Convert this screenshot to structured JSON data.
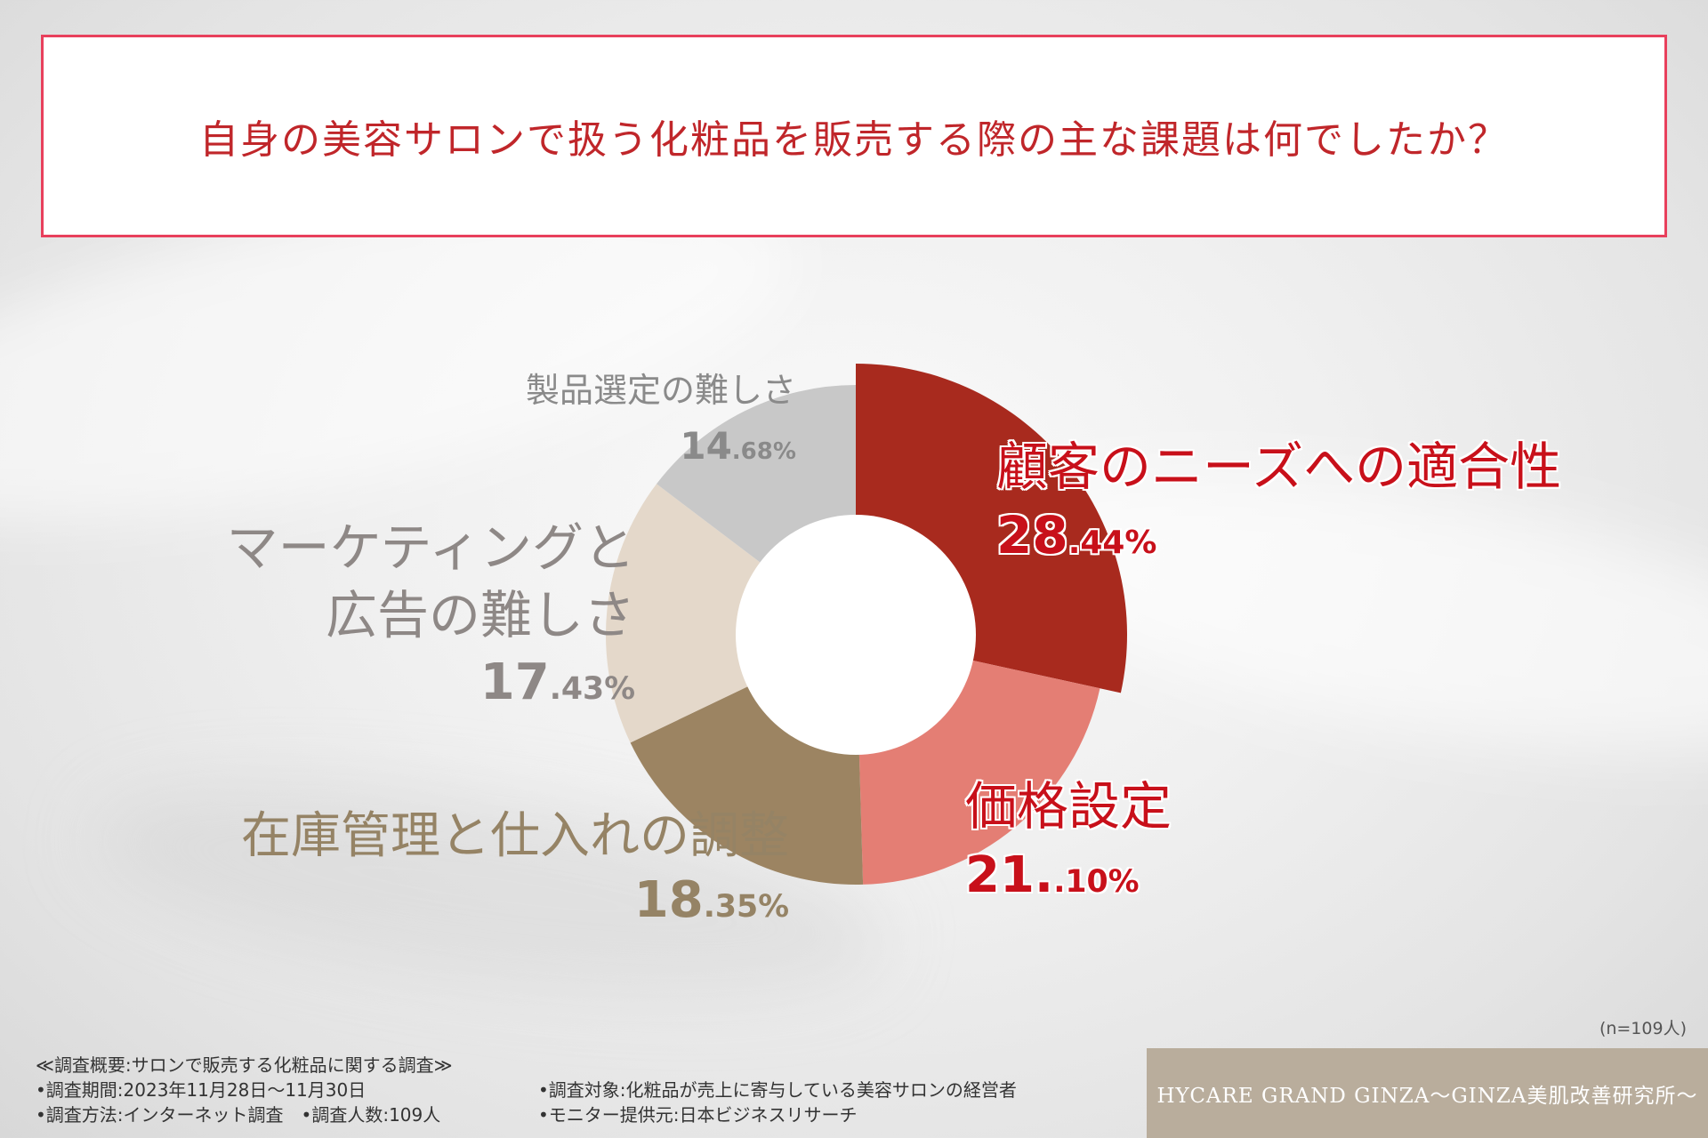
{
  "title": "自身の美容サロンで扱う化粧品を販売する際の主な課題は何でしたか？",
  "chart_data": {
    "type": "pie",
    "subtype": "donut",
    "title": "自身の美容サロンで扱う化粧品を販売する際の主な課題は何でしたか？",
    "slices": [
      {
        "label": "顧客のニーズへの適合性",
        "value": 28.44,
        "pct_int": "28",
        "pct_dec": ".44%",
        "color": "#a82a1e",
        "label_color": "#c8101a"
      },
      {
        "label": "価格設定",
        "value": 21.1,
        "pct_int": "21.",
        "pct_dec": ".10%",
        "color": "#e47e74",
        "label_color": "#c8101a"
      },
      {
        "label": "在庫管理と仕入れの調整",
        "value": 18.35,
        "pct_int": "18",
        "pct_dec": ".35%",
        "color": "#9c8462",
        "label_color": "#958365"
      },
      {
        "label": "マーケティングと広告の難しさ",
        "label_lines": [
          "マーケティングと",
          "広告の難しさ"
        ],
        "value": 17.43,
        "pct_int": "17",
        "pct_dec": ".43%",
        "color": "#e4d8ca",
        "label_color": "#8e8886"
      },
      {
        "label": "製品選定の難しさ",
        "value": 14.68,
        "pct_int": "14",
        "pct_dec": ".68%",
        "color": "#c8c8c8",
        "label_color": "#8a8a8a"
      }
    ]
  },
  "sample_note": "(n=109人)",
  "survey": {
    "overview": "≪調査概要:サロンで販売する化粧品に関する調査≫",
    "period": "•調査期間:2023年11月28日～11月30日",
    "method": "•調査方法:インターネット調査　•調査人数:109人",
    "target": "•調査対象:化粧品が売上に寄与している美容サロンの経営者",
    "provider": "•モニター提供元:日本ビジネスリサーチ"
  },
  "brand": "HYCARE GRAND GINZA～GINZA美肌改善研究所～"
}
